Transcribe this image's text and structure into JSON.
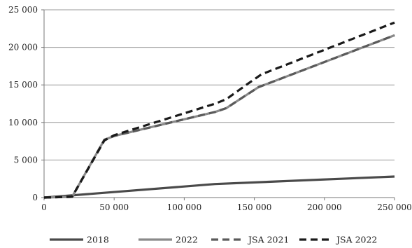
{
  "chart_data": {
    "type": "line",
    "title": "",
    "xlabel": "",
    "ylabel": "",
    "xlim": [
      0,
      250000
    ],
    "ylim": [
      0,
      25000
    ],
    "xticks": [
      0,
      50000,
      100000,
      150000,
      200000,
      250000
    ],
    "xtick_labels": [
      "0",
      "50 000",
      "100 000",
      "150 000",
      "200 000",
      "250 000"
    ],
    "yticks": [
      0,
      5000,
      10000,
      15000,
      20000,
      25000
    ],
    "ytick_labels": [
      "0",
      "5 000",
      "10 000",
      "15 000",
      "20 000",
      "25 000"
    ],
    "grid": "horizontal",
    "legend_position": "bottom",
    "series": [
      {
        "name": "2018",
        "color": "#4a4a4a",
        "dash": "solid",
        "points": [
          [
            0,
            0
          ],
          [
            122000,
            1800
          ],
          [
            250000,
            2800
          ]
        ]
      },
      {
        "name": "2022",
        "color": "#8a8a8a",
        "dash": "solid",
        "points": [
          [
            0,
            0
          ],
          [
            20000,
            100
          ],
          [
            43000,
            7700
          ],
          [
            50000,
            8200
          ],
          [
            122000,
            11400
          ],
          [
            130000,
            11900
          ],
          [
            143000,
            13500
          ],
          [
            153000,
            14700
          ],
          [
            250000,
            21600
          ]
        ]
      },
      {
        "name": "JSA 2021",
        "color": "#5a5a5a",
        "dash": "dashed",
        "points": [
          [
            0,
            0
          ],
          [
            20000,
            100
          ],
          [
            43000,
            7700
          ],
          [
            50000,
            8200
          ],
          [
            122000,
            11400
          ],
          [
            130000,
            11900
          ],
          [
            143000,
            13500
          ],
          [
            153000,
            14700
          ],
          [
            250000,
            21600
          ]
        ]
      },
      {
        "name": "JSA 2022",
        "color": "#1a1a1a",
        "dash": "dashed",
        "points": [
          [
            0,
            0
          ],
          [
            20000,
            100
          ],
          [
            43000,
            7600
          ],
          [
            50000,
            8300
          ],
          [
            122000,
            12500
          ],
          [
            130000,
            13100
          ],
          [
            145000,
            15100
          ],
          [
            155000,
            16400
          ],
          [
            250000,
            23300
          ]
        ]
      }
    ]
  }
}
